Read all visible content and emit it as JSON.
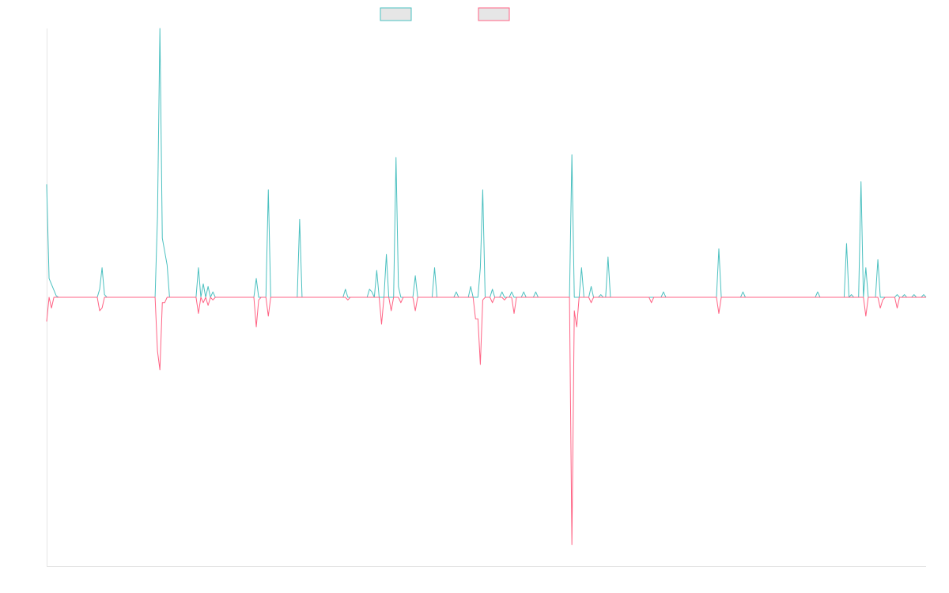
{
  "chart_data": {
    "type": "line",
    "title": "",
    "xlabel": "",
    "ylabel": "",
    "grid": false,
    "legend_position": "top-center",
    "ylim": [
      -1.0,
      1.0
    ],
    "series": [
      {
        "color": "#4bc0c0",
        "fill": "#e6e6e6",
        "points": [
          [
            0,
            0.42
          ],
          [
            1,
            0.07
          ],
          [
            4,
            0.005
          ],
          [
            5,
            0
          ],
          [
            21,
            0
          ],
          [
            22,
            0.03
          ],
          [
            23,
            0.11
          ],
          [
            24,
            0.01
          ],
          [
            25,
            0
          ],
          [
            45,
            0
          ],
          [
            46,
            0.3
          ],
          [
            47,
            1.0
          ],
          [
            48,
            0.22
          ],
          [
            50,
            0.12
          ],
          [
            51,
            0
          ],
          [
            62,
            0
          ],
          [
            63,
            0.11
          ],
          [
            64,
            0
          ],
          [
            65,
            0.05
          ],
          [
            66,
            0
          ],
          [
            67,
            0.04
          ],
          [
            68,
            0
          ],
          [
            69,
            0.02
          ],
          [
            70,
            0
          ],
          [
            86,
            0
          ],
          [
            87,
            0.07
          ],
          [
            88,
            0
          ],
          [
            91,
            0
          ],
          [
            92,
            0.4
          ],
          [
            93,
            0
          ],
          [
            104,
            0
          ],
          [
            105,
            0.29
          ],
          [
            106,
            0
          ],
          [
            123,
            0
          ],
          [
            124,
            0.03
          ],
          [
            125,
            0
          ],
          [
            133,
            0
          ],
          [
            134,
            0.03
          ],
          [
            135,
            0.02
          ],
          [
            136,
            0
          ],
          [
            137,
            0.1
          ],
          [
            138,
            0
          ],
          [
            140,
            0
          ],
          [
            141,
            0.16
          ],
          [
            142,
            0
          ],
          [
            144,
            0
          ],
          [
            145,
            0.52
          ],
          [
            146,
            0.04
          ],
          [
            147,
            0
          ],
          [
            152,
            0
          ],
          [
            153,
            0.08
          ],
          [
            154,
            0
          ],
          [
            160,
            0
          ],
          [
            161,
            0.11
          ],
          [
            162,
            0
          ],
          [
            169,
            0
          ],
          [
            170,
            0.02
          ],
          [
            171,
            0
          ],
          [
            175,
            0
          ],
          [
            176,
            0.04
          ],
          [
            177,
            0
          ],
          [
            179,
            0
          ],
          [
            180,
            0.11
          ],
          [
            181,
            0.4
          ],
          [
            182,
            0
          ],
          [
            184,
            0
          ],
          [
            185,
            0.03
          ],
          [
            186,
            0
          ],
          [
            188,
            0
          ],
          [
            189,
            0.02
          ],
          [
            190,
            0
          ],
          [
            192,
            0
          ],
          [
            193,
            0.02
          ],
          [
            194,
            0
          ],
          [
            197,
            0
          ],
          [
            198,
            0.02
          ],
          [
            199,
            0
          ],
          [
            202,
            0
          ],
          [
            203,
            0.02
          ],
          [
            204,
            0
          ],
          [
            217,
            0
          ],
          [
            218,
            0.53
          ],
          [
            219,
            0
          ],
          [
            221,
            0
          ],
          [
            222,
            0.11
          ],
          [
            223,
            0
          ],
          [
            225,
            0
          ],
          [
            226,
            0.04
          ],
          [
            227,
            0
          ],
          [
            229,
            0
          ],
          [
            230,
            0.01
          ],
          [
            231,
            0
          ],
          [
            232,
            0
          ],
          [
            233,
            0.15
          ],
          [
            234,
            0
          ],
          [
            255,
            0
          ],
          [
            256,
            0.02
          ],
          [
            257,
            0
          ],
          [
            278,
            0
          ],
          [
            279,
            0.18
          ],
          [
            280,
            0
          ],
          [
            288,
            0
          ],
          [
            289,
            0.02
          ],
          [
            290,
            0
          ],
          [
            319,
            0
          ],
          [
            320,
            0.02
          ],
          [
            321,
            0
          ],
          [
            331,
            0
          ],
          [
            332,
            0.2
          ],
          [
            333,
            0
          ],
          [
            334,
            0.01
          ],
          [
            335,
            0
          ],
          [
            337,
            0
          ],
          [
            338,
            0.43
          ],
          [
            339,
            0
          ],
          [
            340,
            0.11
          ],
          [
            341,
            0
          ],
          [
            344,
            0
          ],
          [
            345,
            0.14
          ],
          [
            346,
            0
          ],
          [
            352,
            0
          ],
          [
            353,
            0.01
          ],
          [
            354,
            0
          ],
          [
            355,
            0
          ],
          [
            356,
            0.01
          ],
          [
            357,
            0
          ],
          [
            359,
            0
          ],
          [
            360,
            0.01
          ],
          [
            361,
            0
          ],
          [
            363,
            0
          ],
          [
            364,
            0.01
          ],
          [
            365,
            0
          ]
        ]
      },
      {
        "color": "#ff6384",
        "fill": "#e6e6e6",
        "points": [
          [
            0,
            -0.09
          ],
          [
            1,
            0
          ],
          [
            2,
            -0.04
          ],
          [
            3,
            0
          ],
          [
            21,
            0
          ],
          [
            22,
            -0.05
          ],
          [
            23,
            -0.04
          ],
          [
            24,
            0
          ],
          [
            45,
            0
          ],
          [
            46,
            -0.2
          ],
          [
            47,
            -0.27
          ],
          [
            48,
            -0.02
          ],
          [
            49,
            -0.02
          ],
          [
            50,
            0
          ],
          [
            62,
            0
          ],
          [
            63,
            -0.06
          ],
          [
            64,
            0
          ],
          [
            65,
            -0.02
          ],
          [
            66,
            0
          ],
          [
            67,
            -0.03
          ],
          [
            68,
            0
          ],
          [
            69,
            -0.01
          ],
          [
            70,
            0
          ],
          [
            86,
            0
          ],
          [
            87,
            -0.11
          ],
          [
            88,
            -0.01
          ],
          [
            89,
            0
          ],
          [
            91,
            0
          ],
          [
            92,
            -0.07
          ],
          [
            93,
            0
          ],
          [
            124,
            0
          ],
          [
            125,
            -0.01
          ],
          [
            126,
            0
          ],
          [
            138,
            0
          ],
          [
            139,
            -0.1
          ],
          [
            140,
            0
          ],
          [
            142,
            0
          ],
          [
            143,
            -0.05
          ],
          [
            144,
            0
          ],
          [
            146,
            0
          ],
          [
            147,
            -0.02
          ],
          [
            148,
            0
          ],
          [
            152,
            0
          ],
          [
            153,
            -0.05
          ],
          [
            154,
            0
          ],
          [
            177,
            0
          ],
          [
            178,
            -0.08
          ],
          [
            179,
            -0.08
          ],
          [
            180,
            -0.25
          ],
          [
            181,
            -0.01
          ],
          [
            182,
            0
          ],
          [
            184,
            0
          ],
          [
            185,
            -0.02
          ],
          [
            186,
            0
          ],
          [
            189,
            0
          ],
          [
            190,
            -0.01
          ],
          [
            191,
            0
          ],
          [
            193,
            0
          ],
          [
            194,
            -0.06
          ],
          [
            195,
            0
          ],
          [
            217,
            0
          ],
          [
            218,
            -0.92
          ],
          [
            219,
            -0.05
          ],
          [
            220,
            -0.11
          ],
          [
            221,
            0
          ],
          [
            225,
            0
          ],
          [
            226,
            -0.02
          ],
          [
            227,
            0
          ],
          [
            250,
            0
          ],
          [
            251,
            -0.02
          ],
          [
            252,
            0
          ],
          [
            278,
            0
          ],
          [
            279,
            -0.06
          ],
          [
            280,
            0
          ],
          [
            339,
            0
          ],
          [
            340,
            -0.07
          ],
          [
            341,
            0
          ],
          [
            345,
            0
          ],
          [
            346,
            -0.04
          ],
          [
            347,
            -0.01
          ],
          [
            348,
            0
          ],
          [
            352,
            0
          ],
          [
            353,
            -0.04
          ],
          [
            354,
            0
          ],
          [
            365,
            0
          ]
        ]
      }
    ]
  }
}
